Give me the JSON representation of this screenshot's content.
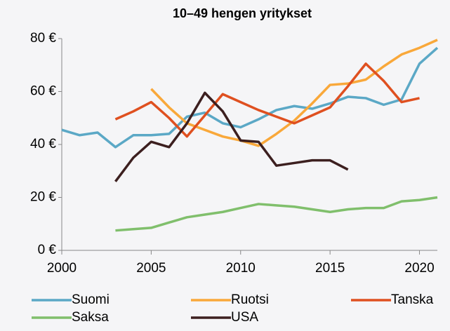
{
  "chart_data": {
    "type": "line",
    "title": "10–49 hengen yritykset",
    "x": [
      2000,
      2001,
      2002,
      2003,
      2004,
      2005,
      2006,
      2007,
      2008,
      2009,
      2010,
      2011,
      2012,
      2013,
      2014,
      2015,
      2016,
      2017,
      2018,
      2019,
      2020,
      2021
    ],
    "series": [
      {
        "name": "Suomi",
        "color": "#5ba8c6",
        "values": [
          45.5,
          43.5,
          44.5,
          39,
          43.5,
          43.5,
          44,
          50.5,
          52,
          48,
          46.5,
          49.5,
          53,
          54.5,
          53.5,
          55.5,
          58,
          57.5,
          55,
          57,
          70.5,
          76.5
        ]
      },
      {
        "name": "Ruotsi",
        "color": "#f9a83a",
        "values": [
          null,
          null,
          null,
          null,
          null,
          61,
          54,
          48,
          45.5,
          43,
          41.5,
          39.5,
          44,
          49,
          55.5,
          62.5,
          63,
          64.5,
          69.5,
          74,
          76.5,
          79.5
        ]
      },
      {
        "name": "Tanska",
        "color": "#df5020",
        "values": [
          null,
          null,
          null,
          49.5,
          52.5,
          56,
          50,
          43,
          51,
          59,
          56,
          53,
          50.5,
          48,
          51,
          54,
          62,
          70.5,
          64,
          56,
          57.5,
          null
        ]
      },
      {
        "name": "Saksa",
        "color": "#80bf6c",
        "values": [
          null,
          null,
          null,
          7.5,
          8,
          8.5,
          10.5,
          12.5,
          13.5,
          14.5,
          16,
          17.5,
          17,
          16.5,
          15.5,
          14.5,
          15.5,
          16,
          16,
          18.5,
          19,
          20
        ]
      },
      {
        "name": "USA",
        "color": "#3c1f1f",
        "values": [
          null,
          null,
          null,
          26,
          35,
          41,
          39,
          48,
          59.5,
          52.5,
          41.5,
          41,
          32,
          33,
          34,
          34,
          30.5,
          null,
          null,
          null,
          null,
          null
        ]
      }
    ],
    "xlim": [
      2000,
      2021
    ],
    "xticks": [
      2000,
      2005,
      2010,
      2015,
      2020
    ],
    "ylim": [
      0,
      80
    ],
    "yticks": [
      {
        "value": 0,
        "label": "0 €"
      },
      {
        "value": 20,
        "label": "20 €"
      },
      {
        "value": 40,
        "label": "40 €"
      },
      {
        "value": 60,
        "label": "60 €"
      },
      {
        "value": 80,
        "label": "80 €"
      }
    ],
    "grid": false
  }
}
